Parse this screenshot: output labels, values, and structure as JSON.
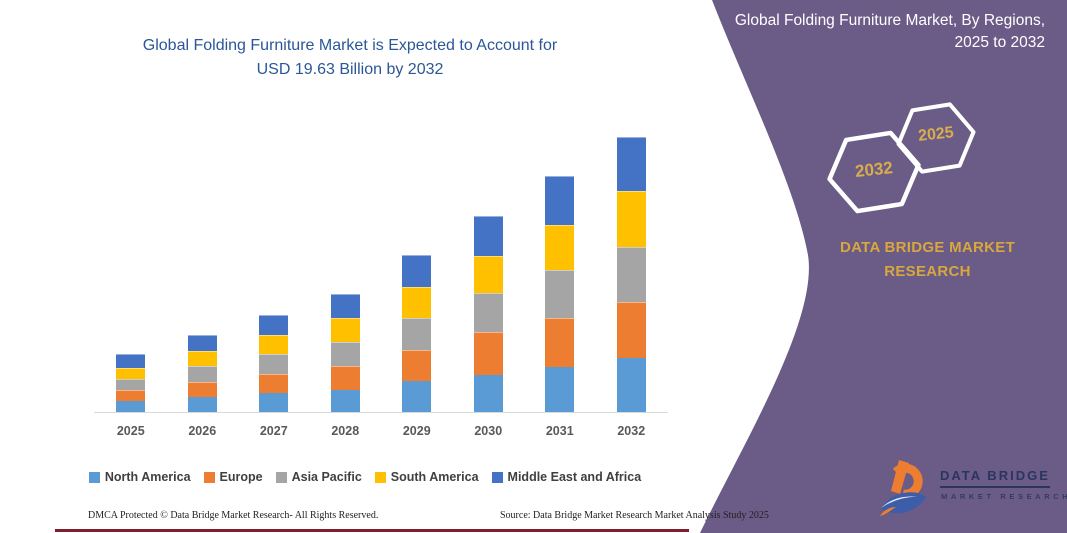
{
  "page": {
    "accent_purple": "#6B5B87",
    "bottom_line_color": "#7E1F2D",
    "background": "#ffffff"
  },
  "chart": {
    "title_line1": "Global Folding Furniture Market is Expected to Account for",
    "title_line2": "USD 19.63 Billion by 2032",
    "title_color": "#2B5797"
  },
  "chart_data": {
    "type": "bar",
    "stacked": true,
    "title": "Global Folding Furniture Market is Expected to Account for USD 19.63 Billion by 2032",
    "xlabel": "",
    "ylabel": "USD Billion",
    "unit": "USD Billion",
    "ylim": [
      0,
      20
    ],
    "grid": false,
    "y_axis_hidden": true,
    "legend_position": "bottom",
    "categories": [
      "2025",
      "2026",
      "2027",
      "2028",
      "2029",
      "2030",
      "2031",
      "2032"
    ],
    "series": [
      {
        "name": "North America",
        "color": "#5B9BD5",
        "values": [
          0.83,
          1.11,
          1.39,
          1.66,
          2.25,
          2.72,
          3.27,
          3.91
        ]
      },
      {
        "name": "Europe",
        "color": "#ED7D31",
        "values": [
          0.78,
          1.11,
          1.39,
          1.71,
          2.25,
          3.01,
          3.48,
          3.98
        ]
      },
      {
        "name": "Asia Pacific",
        "color": "#A5A5A5",
        "values": [
          0.81,
          1.11,
          1.4,
          1.66,
          2.25,
          2.8,
          3.39,
          3.91
        ]
      },
      {
        "name": "South America",
        "color": "#FFC000",
        "values": [
          0.78,
          1.11,
          1.39,
          1.73,
          2.18,
          2.65,
          3.25,
          3.96
        ]
      },
      {
        "name": "Middle East and Africa",
        "color": "#4472C4",
        "values": [
          1.0,
          1.13,
          1.4,
          1.71,
          2.33,
          2.85,
          3.49,
          3.87
        ]
      }
    ],
    "totals": [
      4.2,
      5.57,
      6.97,
      8.47,
      11.26,
      14.03,
      16.88,
      19.63
    ],
    "stack_order_bottom_to_top": [
      "North America",
      "Europe",
      "Asia Pacific",
      "South America",
      "Middle East and Africa"
    ]
  },
  "panel": {
    "title": "Global Folding Furniture Market, By Regions, 2025 to 2032",
    "hexagons": [
      {
        "label": "2032"
      },
      {
        "label": "2025"
      }
    ],
    "brand_line1": "DATA BRIDGE MARKET",
    "brand_line2": "RESEARCH",
    "brand_color": "#D8A73D",
    "logo": {
      "line1": "DATA BRIDGE",
      "line2": "MARKET RESEARCH"
    }
  },
  "footer": {
    "left": "DMCA Protected © Data Bridge Market Research-  All Rights Reserved.",
    "right": "Source: Data Bridge Market Research  Market Analysis Study 2025"
  }
}
